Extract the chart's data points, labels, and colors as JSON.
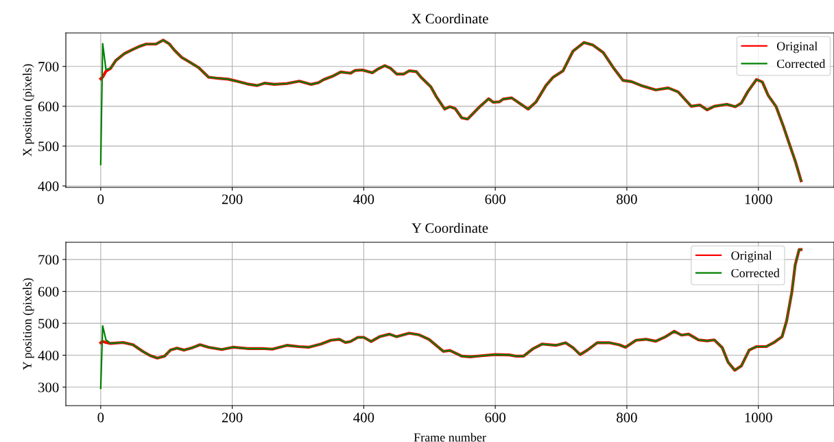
{
  "chart_data": [
    {
      "type": "line",
      "title": "X Coordinate",
      "ylabel": "X position (pixels)",
      "x": [
        0,
        3,
        8,
        15,
        23,
        36,
        47,
        60,
        69,
        84,
        95,
        104,
        112,
        123,
        134,
        149,
        164,
        179,
        194,
        209,
        223,
        238,
        249,
        264,
        283,
        302,
        320,
        331,
        339,
        352,
        365,
        380,
        387,
        398,
        413,
        422,
        432,
        441,
        450,
        461,
        469,
        480,
        487,
        502,
        510,
        523,
        531,
        539,
        549,
        558,
        565,
        577,
        590,
        597,
        606,
        612,
        625,
        640,
        650,
        662,
        677,
        688,
        703,
        718,
        735,
        748,
        764,
        779,
        794,
        807,
        822,
        844,
        863,
        878,
        898,
        911,
        922,
        933,
        952,
        965,
        974,
        984,
        997,
        1006,
        1015,
        1027,
        1038,
        1047,
        1056,
        1065
      ],
      "series": [
        {
          "name": "Original",
          "color": "#ff0000",
          "values": [
            669,
            673,
            688,
            695,
            715,
            732,
            741,
            751,
            756,
            756,
            766,
            757,
            741,
            723,
            712,
            697,
            673,
            670,
            668,
            662,
            656,
            652,
            658,
            655,
            657,
            663,
            655,
            659,
            667,
            675,
            686,
            683,
            690,
            691,
            684,
            694,
            702,
            695,
            681,
            681,
            689,
            687,
            673,
            649,
            625,
            593,
            599,
            594,
            571,
            568,
            580,
            600,
            619,
            610,
            611,
            618,
            621,
            604,
            593,
            611,
            652,
            673,
            689,
            738,
            760,
            754,
            735,
            698,
            665,
            662,
            652,
            641,
            646,
            636,
            600,
            603,
            591,
            600,
            605,
            599,
            608,
            637,
            667,
            661,
            627,
            599,
            550,
            506,
            463,
            413
          ]
        },
        {
          "name": "Corrected",
          "color": "#008000",
          "values": [
            454,
            757,
            692,
            695,
            715,
            732,
            741,
            751,
            756,
            756,
            766,
            757,
            741,
            723,
            712,
            697,
            673,
            670,
            668,
            662,
            656,
            652,
            658,
            655,
            657,
            663,
            655,
            659,
            667,
            675,
            686,
            683,
            690,
            691,
            684,
            694,
            702,
            695,
            681,
            681,
            689,
            687,
            673,
            649,
            625,
            593,
            599,
            594,
            571,
            568,
            580,
            600,
            619,
            610,
            611,
            618,
            621,
            604,
            593,
            611,
            652,
            673,
            689,
            738,
            760,
            754,
            735,
            698,
            665,
            662,
            652,
            641,
            646,
            636,
            600,
            603,
            591,
            600,
            605,
            599,
            608,
            637,
            667,
            661,
            627,
            599,
            550,
            506,
            463,
            413
          ]
        }
      ],
      "xlim": [
        -53,
        1115
      ],
      "xticks": [
        0,
        200,
        400,
        600,
        800,
        1000
      ],
      "ylim": [
        396.5,
        784
      ],
      "yticks": [
        400,
        500,
        600,
        700
      ],
      "grid": true,
      "legend": "top right",
      "marker": "none",
      "line_style": "solid"
    },
    {
      "type": "line",
      "title": "Y Coordinate",
      "xlabel": "Frame number",
      "ylabel": "Y position (pixels)",
      "x": [
        0,
        3,
        8,
        15,
        34,
        49,
        64,
        75,
        86,
        97,
        106,
        116,
        127,
        140,
        151,
        164,
        184,
        201,
        223,
        246,
        261,
        283,
        301,
        316,
        335,
        350,
        363,
        372,
        380,
        391,
        400,
        411,
        424,
        439,
        450,
        469,
        484,
        499,
        510,
        521,
        531,
        549,
        562,
        577,
        600,
        621,
        632,
        643,
        657,
        671,
        692,
        707,
        718,
        729,
        740,
        755,
        774,
        788,
        798,
        814,
        829,
        844,
        859,
        872,
        883,
        894,
        909,
        922,
        933,
        945,
        954,
        964,
        974,
        986,
        997,
        1012,
        1023,
        1036,
        1043,
        1051,
        1056,
        1062,
        1065
      ],
      "series": [
        {
          "name": "Original",
          "color": "#ff0000",
          "values": [
            439,
            443,
            440,
            437,
            440,
            433,
            412,
            399,
            391,
            397,
            416,
            422,
            416,
            424,
            433,
            425,
            418,
            425,
            421,
            421,
            419,
            431,
            427,
            425,
            435,
            447,
            450,
            440,
            443,
            456,
            456,
            443,
            458,
            466,
            458,
            469,
            464,
            450,
            431,
            412,
            415,
            397,
            395,
            398,
            402,
            401,
            397,
            397,
            420,
            435,
            431,
            439,
            424,
            402,
            416,
            439,
            439,
            433,
            425,
            447,
            450,
            444,
            458,
            475,
            463,
            466,
            448,
            445,
            448,
            424,
            378,
            353,
            366,
            416,
            427,
            427,
            439,
            458,
            508,
            599,
            683,
            731,
            731
          ]
        },
        {
          "name": "Corrected",
          "color": "#008000",
          "values": [
            296,
            492,
            448,
            437,
            440,
            433,
            412,
            399,
            391,
            397,
            416,
            422,
            416,
            424,
            433,
            425,
            418,
            425,
            421,
            421,
            419,
            431,
            427,
            425,
            435,
            447,
            450,
            440,
            443,
            456,
            456,
            443,
            458,
            466,
            458,
            469,
            464,
            450,
            431,
            412,
            415,
            397,
            395,
            398,
            402,
            401,
            397,
            397,
            420,
            435,
            431,
            439,
            424,
            402,
            416,
            439,
            439,
            433,
            425,
            447,
            450,
            444,
            458,
            475,
            463,
            466,
            448,
            445,
            448,
            424,
            378,
            353,
            366,
            416,
            427,
            427,
            439,
            458,
            508,
            599,
            683,
            731,
            731
          ]
        }
      ],
      "xlim": [
        -53,
        1115
      ],
      "xticks": [
        0,
        200,
        400,
        600,
        800,
        1000
      ],
      "ylim": [
        242,
        754
      ],
      "yticks": [
        300,
        400,
        500,
        600,
        700
      ],
      "grid": true,
      "legend": "top right",
      "marker": "none",
      "line_style": "solid"
    }
  ]
}
